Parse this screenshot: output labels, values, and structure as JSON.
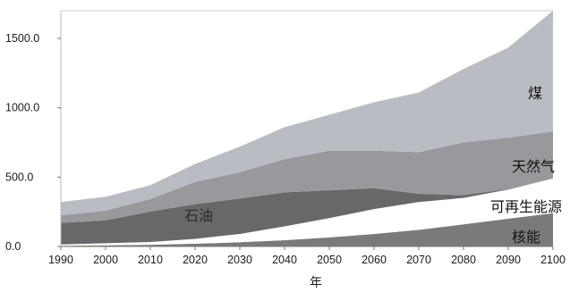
{
  "chart_data": {
    "type": "area",
    "stacked": true,
    "title": "",
    "xlabel": "年",
    "ylabel": "",
    "x": [
      1990,
      2000,
      2010,
      2020,
      2030,
      2040,
      2050,
      2060,
      2070,
      2080,
      2090,
      2100
    ],
    "xlim": [
      1990,
      2100
    ],
    "ylim": [
      0,
      1700
    ],
    "y_ticks": [
      "0.0",
      "500.0",
      "1000.0",
      "1500.0"
    ],
    "grid": false,
    "legend": "none",
    "series": [
      {
        "name": "核能",
        "color": "#7a7a7c",
        "values": [
          5,
          8,
          12,
          20,
          30,
          45,
          65,
          90,
          120,
          160,
          200,
          240
        ]
      },
      {
        "name": "可再生能源",
        "color": "#ffffff",
        "values": [
          10,
          15,
          20,
          35,
          60,
          100,
          140,
          180,
          200,
          190,
          210,
          250
        ]
      },
      {
        "name": "石油",
        "color": "#68686b",
        "values": [
          155,
          165,
          220,
          250,
          255,
          245,
          200,
          150,
          60,
          20,
          5,
          0
        ]
      },
      {
        "name": "天然气",
        "color": "#98999c",
        "values": [
          55,
          70,
          90,
          160,
          190,
          240,
          285,
          270,
          300,
          380,
          370,
          340
        ]
      },
      {
        "name": "煤",
        "color": "#b9bcc3",
        "values": [
          95,
          100,
          100,
          130,
          185,
          230,
          260,
          350,
          430,
          530,
          650,
          870
        ]
      }
    ]
  }
}
